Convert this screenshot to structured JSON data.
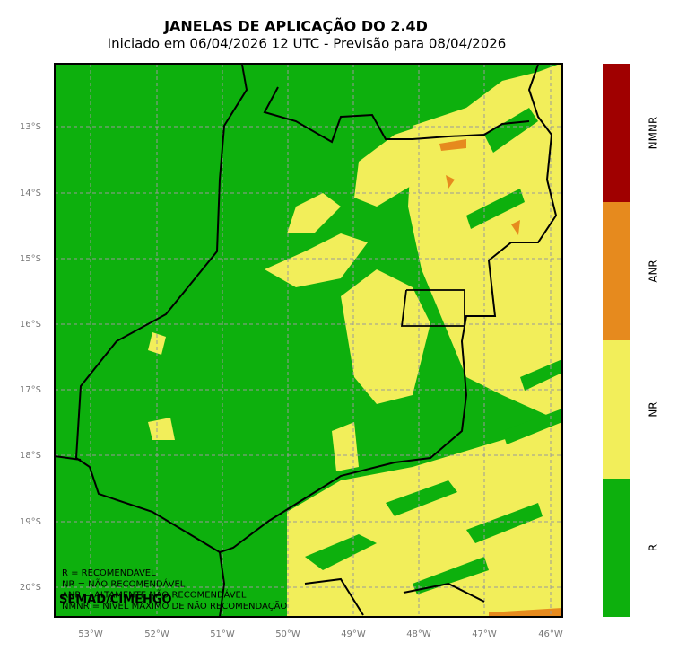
{
  "header": {
    "title": "JANELAS DE APLICAÇÃO DO 2.4D",
    "subtitle": "Iniciado em 06/04/2026 12 UTC - Previsão para 08/04/2026"
  },
  "map": {
    "lat_labels": [
      "13°S",
      "14°S",
      "15°S",
      "16°S",
      "17°S",
      "18°S",
      "19°S",
      "20°S"
    ],
    "lon_labels": [
      "53°W",
      "52°W",
      "51°W",
      "50°W",
      "49°W",
      "48°W",
      "47°W",
      "46°W"
    ],
    "legend_lines": [
      "R = RECOMENDÁVEL",
      "NR = NÃO RECOMENDÁVEL",
      "ANR = ALTAMENTE NÃO RECOMENDÁVEL",
      "NMNR = NÍVEL MÁXIMO DE NÃO RECOMENDAÇÃO"
    ],
    "credit": "SEMAD/CIMEHGO"
  },
  "colorbar": {
    "categories": [
      {
        "label": "NMNR",
        "color": "#a00000"
      },
      {
        "label": "ANR",
        "color": "#e68a1e"
      },
      {
        "label": "NR",
        "color": "#f2ee5a"
      },
      {
        "label": "R",
        "color": "#0db00d"
      }
    ]
  }
}
